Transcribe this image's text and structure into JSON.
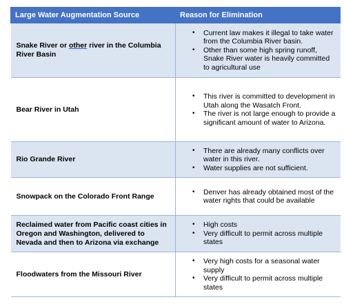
{
  "table": {
    "headers": [
      "Large Water Augmentation Source",
      "Reason for Elimination"
    ],
    "rows": [
      {
        "source_parts": [
          "Snake River or ",
          "other",
          " river in the Columbia River Basin"
        ],
        "reasons": [
          "Current law makes it illegal to take water from the Columbia River basin.",
          "Other than some high spring runoff, Snake River water is heavily committed to agricultural use"
        ]
      },
      {
        "source": "Bear River in Utah",
        "reasons": [
          "This river is committed to development in Utah along the Wasatch Front.",
          "The river is not large enough to provide a significant amount of water to Arizona."
        ]
      },
      {
        "source": "Rio Grande River",
        "reasons": [
          "There are already many conflicts over water in this river.",
          "Water supplies are not sufficient."
        ]
      },
      {
        "source": "Snowpack on the Colorado Front Range",
        "reasons": [
          "Denver has already obtained most of the water rights that could be available"
        ]
      },
      {
        "source": "Reclaimed water from Pacific coast cities in Oregon and Washington, delivered to Nevada and then to Arizona via exchange",
        "reasons": [
          "High costs",
          "Very difficult to permit across multiple states"
        ]
      },
      {
        "source": "Floodwaters from the Missouri River",
        "reasons": [
          "Very high costs for a seasonal water supply",
          "Very difficult to permit across multiple states"
        ]
      }
    ]
  },
  "bullet_glyph": "•"
}
